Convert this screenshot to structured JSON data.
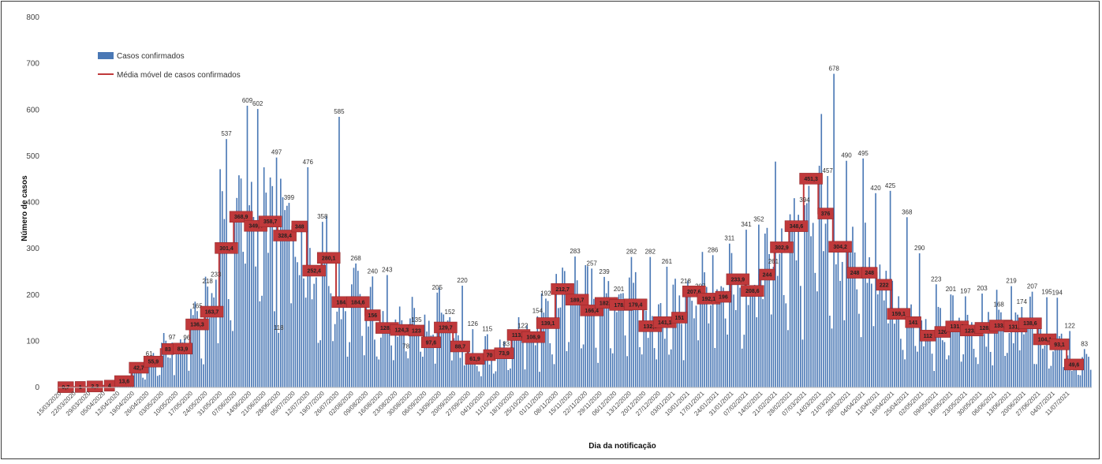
{
  "chart_data": {
    "type": "bar",
    "xlabel": "Dia da notificação",
    "ylabel": "Número de casos",
    "ylim": [
      0,
      800
    ],
    "yticks": [
      0,
      100,
      200,
      300,
      400,
      500,
      600,
      700,
      800
    ],
    "x_tick_labels": [
      "15/03/2020",
      "22/03/2020",
      "29/03/2020",
      "05/04/2020",
      "12/04/2020",
      "19/04/2020",
      "26/04/2020",
      "03/05/2020",
      "10/05/2020",
      "17/05/2020",
      "24/05/2020",
      "31/05/2020",
      "07/06/2020",
      "14/06/2020",
      "21/06/2020",
      "28/06/2020",
      "05/07/2020",
      "12/07/2020",
      "19/07/2020",
      "26/07/2020",
      "02/08/2020",
      "09/08/2020",
      "16/08/2020",
      "23/08/2020",
      "30/08/2020",
      "06/09/2020",
      "13/09/2020",
      "20/09/2020",
      "27/09/2020",
      "04/10/2020",
      "11/10/2020",
      "18/10/2020",
      "25/10/2020",
      "01/11/2020",
      "08/11/2020",
      "15/11/2020",
      "22/11/2020",
      "29/11/2020",
      "06/12/2020",
      "13/12/2020",
      "20/12/2020",
      "27/12/2020",
      "03/01/2021",
      "10/01/2021",
      "17/01/2021",
      "24/01/2021",
      "31/01/2021",
      "07/02/2021",
      "14/02/2021",
      "21/02/2021",
      "28/02/2021",
      "07/03/2021",
      "14/03/2021",
      "21/03/2021",
      "28/03/2021",
      "04/04/2021",
      "11/04/2021",
      "18/04/2021",
      "25/04/2021",
      "02/05/2021",
      "09/05/2021",
      "16/05/2021",
      "23/05/2021",
      "30/05/2021",
      "06/06/2021",
      "13/06/2021",
      "20/06/2021",
      "27/06/2021",
      "04/07/2021",
      "11/07/2021"
    ],
    "grid": false,
    "legend_position": "top-left",
    "series": [
      {
        "name": "Casos confirmados",
        "type": "bar",
        "color": "#4a78b5"
      },
      {
        "name": "Média móvel de casos confirmados",
        "type": "line",
        "color": "#c0393b"
      }
    ],
    "weekly_avg_labels": [
      "0,7",
      "1",
      "2,3",
      "4",
      "13,6",
      "42,7",
      "55,9",
      "83",
      "83,9",
      "136,3",
      "163,7",
      "301,4",
      "368,9",
      "349,4",
      "358,7",
      "328,4",
      "348",
      "252,4",
      "280,1",
      "184,6",
      "184,6",
      "156",
      "128,6",
      "124,3",
      "123",
      "97,6",
      "129,7",
      "88,7",
      "61,9",
      "70",
      "73,9",
      "113,4",
      "108,9",
      "139,1",
      "212,7",
      "189,7",
      "166,4",
      "182,7",
      "178,4",
      "179,4",
      "132,3",
      "141,1",
      "151",
      "207,6",
      "192,1",
      "196",
      "233,9",
      "208,6",
      "244",
      "302,9",
      "348,6",
      "451,3",
      "376",
      "304,2",
      "248",
      "248",
      "222",
      "159,1",
      "141",
      "112",
      "120",
      "131,9",
      "123,1",
      "128,7",
      "133,9",
      "131,7",
      "138,6",
      "104,1",
      "93,1",
      "49,6"
    ],
    "weekly_avg_values": [
      0.7,
      1,
      2.3,
      4,
      13.6,
      42.7,
      55.9,
      83,
      83.9,
      136.3,
      163.7,
      301.4,
      368.9,
      349.4,
      358.7,
      328.4,
      348,
      252.4,
      280.1,
      184.6,
      184.6,
      156,
      128.6,
      124.3,
      123,
      97.6,
      129.7,
      88.7,
      61.9,
      70,
      73.9,
      113.4,
      108.9,
      139.1,
      212.7,
      189.7,
      166.4,
      182.7,
      178.4,
      179.4,
      132.3,
      141.1,
      151,
      207.6,
      192.1,
      196,
      233.9,
      208.6,
      244,
      302.9,
      348.6,
      451.3,
      376,
      304.2,
      248,
      248,
      222,
      159.1,
      141,
      112,
      120,
      131.9,
      123.1,
      128.7,
      133.9,
      131.7,
      138.6,
      104.1,
      93.1,
      49.6
    ],
    "peak_labels": [
      {
        "day": 43,
        "value": 61
      },
      {
        "day": 54,
        "value": 97
      },
      {
        "day": 61,
        "value": 96
      },
      {
        "day": 66,
        "value": 165
      },
      {
        "day": 71,
        "value": 218
      },
      {
        "day": 75,
        "value": 233
      },
      {
        "day": 80,
        "value": 537
      },
      {
        "day": 90,
        "value": 609
      },
      {
        "day": 95,
        "value": 602
      },
      {
        "day": 104,
        "value": 497
      },
      {
        "day": 105,
        "value": 118
      },
      {
        "day": 110,
        "value": 399
      },
      {
        "day": 119,
        "value": 476
      },
      {
        "day": 126,
        "value": 358
      },
      {
        "day": 134,
        "value": 585
      },
      {
        "day": 142,
        "value": 268
      },
      {
        "day": 150,
        "value": 240
      },
      {
        "day": 157,
        "value": 243
      },
      {
        "day": 166,
        "value": 78
      },
      {
        "day": 171,
        "value": 135
      },
      {
        "day": 181,
        "value": 205
      },
      {
        "day": 187,
        "value": 152
      },
      {
        "day": 193,
        "value": 220
      },
      {
        "day": 198,
        "value": 126
      },
      {
        "day": 205,
        "value": 115
      },
      {
        "day": 214,
        "value": 83
      },
      {
        "day": 222,
        "value": 122
      },
      {
        "day": 229,
        "value": 154
      },
      {
        "day": 233,
        "value": 192
      },
      {
        "day": 247,
        "value": 283
      },
      {
        "day": 255,
        "value": 257
      },
      {
        "day": 261,
        "value": 239
      },
      {
        "day": 268,
        "value": 201
      },
      {
        "day": 274,
        "value": 282
      },
      {
        "day": 283,
        "value": 282
      },
      {
        "day": 291,
        "value": 261
      },
      {
        "day": 300,
        "value": 218
      },
      {
        "day": 307,
        "value": 207
      },
      {
        "day": 313,
        "value": 286
      },
      {
        "day": 321,
        "value": 311
      },
      {
        "day": 329,
        "value": 341
      },
      {
        "day": 335,
        "value": 352
      },
      {
        "day": 342,
        "value": 261
      },
      {
        "day": 351,
        "value": 343
      },
      {
        "day": 357,
        "value": 394
      },
      {
        "day": 368,
        "value": 457
      },
      {
        "day": 371,
        "value": 678
      },
      {
        "day": 377,
        "value": 490
      },
      {
        "day": 385,
        "value": 495
      },
      {
        "day": 391,
        "value": 420
      },
      {
        "day": 398,
        "value": 425
      },
      {
        "day": 406,
        "value": 368
      },
      {
        "day": 412,
        "value": 290
      },
      {
        "day": 420,
        "value": 223
      },
      {
        "day": 427,
        "value": 201
      },
      {
        "day": 434,
        "value": 197
      },
      {
        "day": 442,
        "value": 203
      },
      {
        "day": 450,
        "value": 168
      },
      {
        "day": 456,
        "value": 219
      },
      {
        "day": 461,
        "value": 174
      },
      {
        "day": 466,
        "value": 207
      },
      {
        "day": 473,
        "value": 195
      },
      {
        "day": 478,
        "value": 194
      },
      {
        "day": 484,
        "value": 122
      },
      {
        "day": 491,
        "value": 83
      }
    ],
    "bar_count": 495,
    "bar_value_hint": "daily values approximated from the weekly averages and peak labels"
  }
}
